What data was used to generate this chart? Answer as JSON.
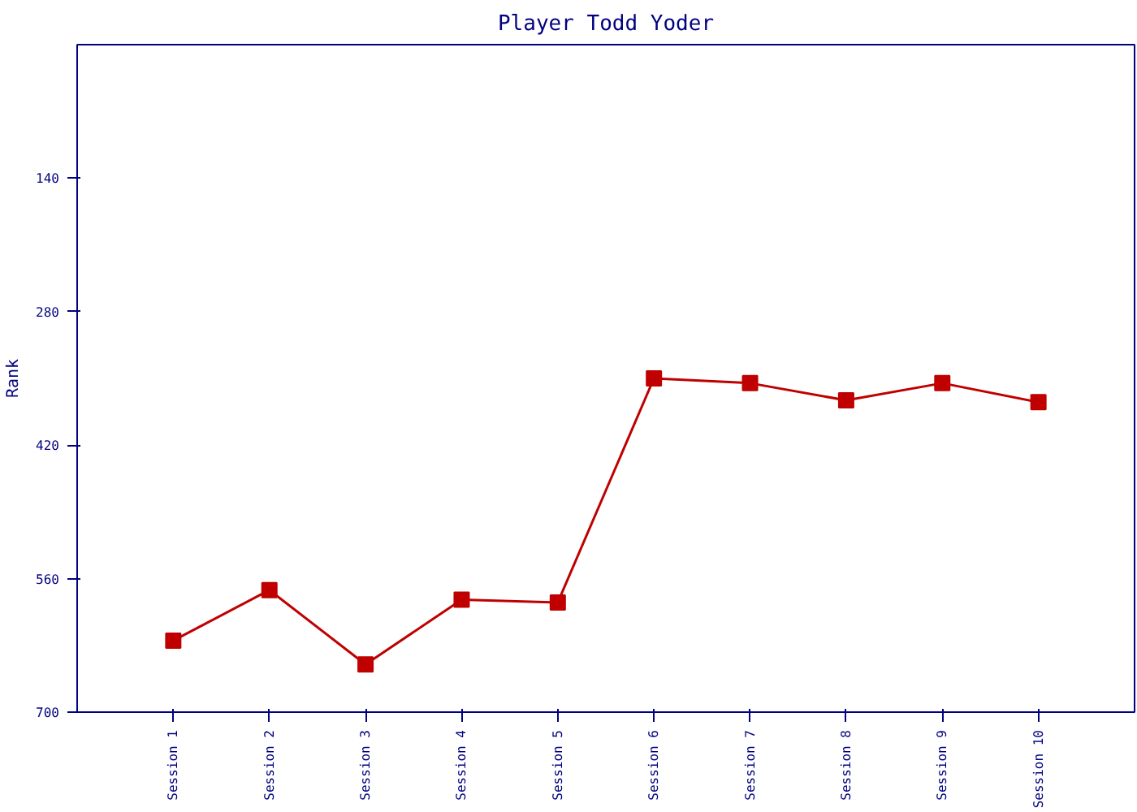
{
  "chart_data": {
    "type": "line",
    "title": "Player Todd Yoder",
    "ylabel": "Rank",
    "categories": [
      "Session 1",
      "Session 2",
      "Session 3",
      "Session 4",
      "Session 5",
      "Session 6",
      "Session 7",
      "Session 8",
      "Session 9",
      "Session 10"
    ],
    "series": [
      {
        "color": "#c00000",
        "values": [
          625,
          572,
          650,
          582,
          585,
          350,
          355,
          373,
          355,
          375
        ]
      }
    ],
    "ylim": [
      700,
      0
    ],
    "yticks": [
      140,
      280,
      420,
      560,
      700
    ],
    "grid": false,
    "marker": "square",
    "line_style": "solid"
  }
}
